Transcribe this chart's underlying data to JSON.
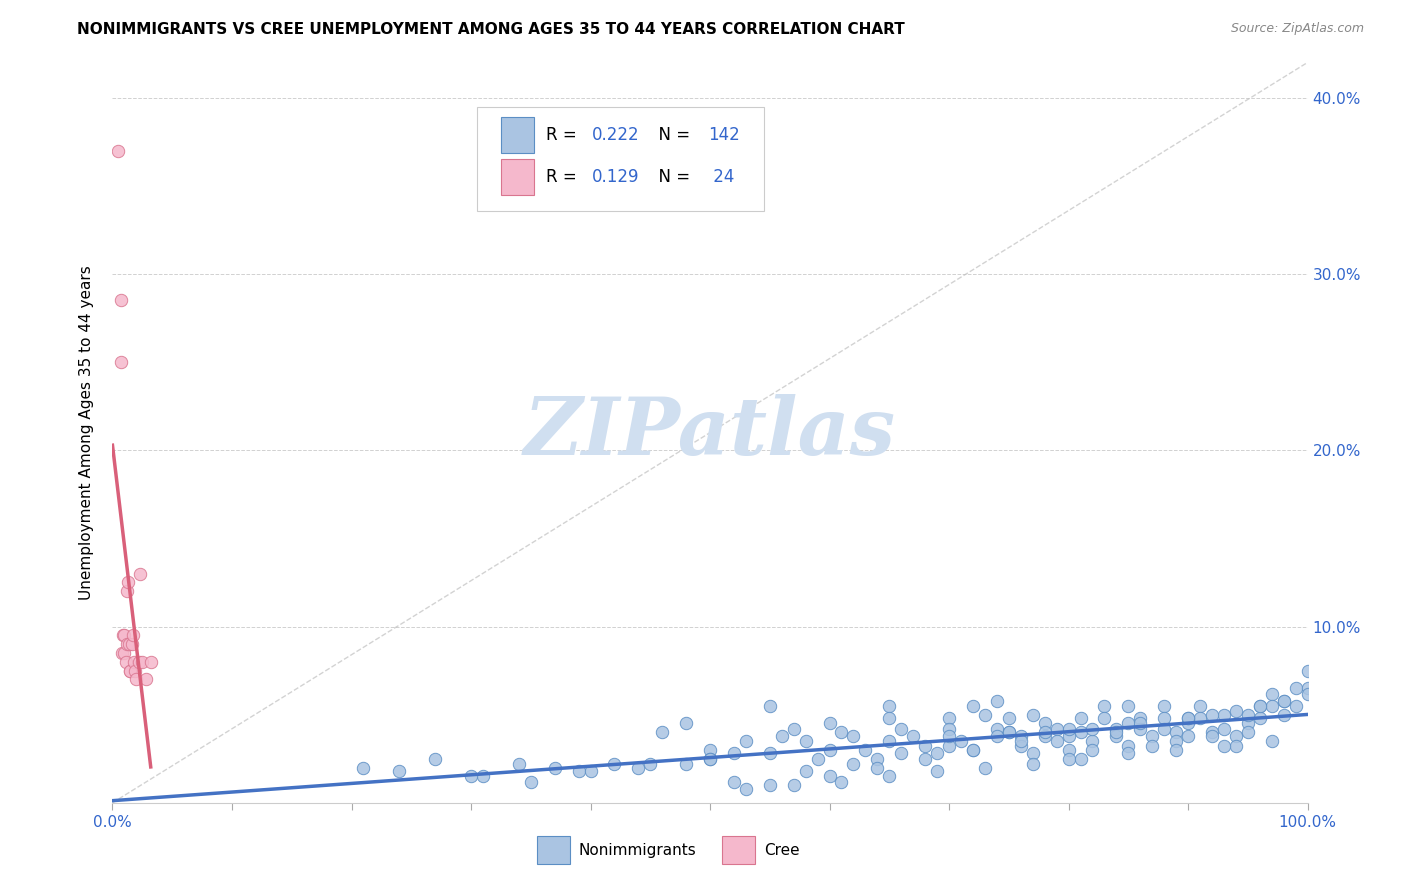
{
  "title": "NONIMMIGRANTS VS CREE UNEMPLOYMENT AMONG AGES 35 TO 44 YEARS CORRELATION CHART",
  "source": "Source: ZipAtlas.com",
  "ylabel": "Unemployment Among Ages 35 to 44 years",
  "xlim": [
    0,
    1.0
  ],
  "ylim": [
    0,
    0.42
  ],
  "xticks": [
    0.0,
    0.1,
    0.2,
    0.3,
    0.4,
    0.5,
    0.6,
    0.7,
    0.8,
    0.9,
    1.0
  ],
  "xticklabels": [
    "0.0%",
    "",
    "",
    "",
    "",
    "",
    "",
    "",
    "",
    "",
    "100.0%"
  ],
  "yticks": [
    0.0,
    0.1,
    0.2,
    0.3,
    0.4
  ],
  "right_yticklabels": [
    "",
    "10.0%",
    "20.0%",
    "30.0%",
    "40.0%"
  ],
  "nonimmigrants_color": "#aac4e2",
  "nonimmigrants_edge": "#5b8ec4",
  "cree_color": "#f5b8cc",
  "cree_edge": "#d9758f",
  "trend_nonimmigrants_color": "#4472c4",
  "trend_cree_color": "#d9607a",
  "diagonal_color": "#c0c0c0",
  "watermark_text": "ZIPatlas",
  "watermark_color": "#d0dff0",
  "legend_R_nonimmigrants": "0.222",
  "legend_N_nonimmigrants": "142",
  "legend_R_cree": "0.129",
  "legend_N_cree": "24",
  "legend_text_color": "#3366cc",
  "nonimmigrants_x": [
    0.21,
    0.24,
    0.27,
    0.31,
    0.34,
    0.37,
    0.39,
    0.42,
    0.44,
    0.46,
    0.48,
    0.5,
    0.52,
    0.53,
    0.55,
    0.56,
    0.57,
    0.58,
    0.59,
    0.6,
    0.61,
    0.62,
    0.63,
    0.64,
    0.65,
    0.65,
    0.66,
    0.67,
    0.68,
    0.69,
    0.7,
    0.7,
    0.71,
    0.72,
    0.72,
    0.73,
    0.74,
    0.74,
    0.75,
    0.75,
    0.76,
    0.76,
    0.77,
    0.77,
    0.78,
    0.78,
    0.79,
    0.79,
    0.8,
    0.8,
    0.81,
    0.81,
    0.82,
    0.82,
    0.83,
    0.83,
    0.84,
    0.84,
    0.85,
    0.85,
    0.86,
    0.86,
    0.87,
    0.87,
    0.88,
    0.88,
    0.89,
    0.89,
    0.9,
    0.9,
    0.91,
    0.91,
    0.92,
    0.92,
    0.93,
    0.93,
    0.94,
    0.94,
    0.95,
    0.95,
    0.96,
    0.96,
    0.97,
    0.97,
    0.98,
    0.98,
    0.99,
    0.99,
    1.0,
    1.0,
    0.48,
    0.5,
    0.52,
    0.55,
    0.58,
    0.6,
    0.62,
    0.64,
    0.66,
    0.68,
    0.7,
    0.72,
    0.74,
    0.76,
    0.78,
    0.8,
    0.82,
    0.84,
    0.86,
    0.88,
    0.9,
    0.92,
    0.94,
    0.96,
    0.98,
    1.0,
    0.53,
    0.57,
    0.61,
    0.65,
    0.69,
    0.73,
    0.77,
    0.81,
    0.85,
    0.89,
    0.93,
    0.97,
    0.3,
    0.35,
    0.4,
    0.45,
    0.5,
    0.55,
    0.6,
    0.65,
    0.7,
    0.75,
    0.8,
    0.85,
    0.9,
    0.95
  ],
  "nonimmigrants_y": [
    0.02,
    0.018,
    0.025,
    0.015,
    0.022,
    0.02,
    0.018,
    0.022,
    0.02,
    0.04,
    0.045,
    0.03,
    0.028,
    0.035,
    0.055,
    0.038,
    0.042,
    0.035,
    0.025,
    0.045,
    0.04,
    0.038,
    0.03,
    0.025,
    0.055,
    0.048,
    0.042,
    0.038,
    0.032,
    0.028,
    0.048,
    0.042,
    0.035,
    0.03,
    0.055,
    0.05,
    0.042,
    0.058,
    0.048,
    0.04,
    0.038,
    0.032,
    0.028,
    0.05,
    0.045,
    0.038,
    0.042,
    0.035,
    0.03,
    0.025,
    0.048,
    0.04,
    0.035,
    0.03,
    0.055,
    0.048,
    0.042,
    0.038,
    0.032,
    0.055,
    0.048,
    0.042,
    0.038,
    0.032,
    0.055,
    0.048,
    0.04,
    0.035,
    0.045,
    0.038,
    0.055,
    0.048,
    0.04,
    0.038,
    0.05,
    0.042,
    0.038,
    0.032,
    0.045,
    0.04,
    0.055,
    0.048,
    0.062,
    0.055,
    0.058,
    0.05,
    0.065,
    0.055,
    0.075,
    0.065,
    0.022,
    0.025,
    0.012,
    0.01,
    0.018,
    0.015,
    0.022,
    0.02,
    0.028,
    0.025,
    0.032,
    0.03,
    0.038,
    0.035,
    0.04,
    0.038,
    0.042,
    0.04,
    0.045,
    0.042,
    0.048,
    0.05,
    0.052,
    0.055,
    0.058,
    0.062,
    0.008,
    0.01,
    0.012,
    0.015,
    0.018,
    0.02,
    0.022,
    0.025,
    0.028,
    0.03,
    0.032,
    0.035,
    0.015,
    0.012,
    0.018,
    0.022,
    0.025,
    0.028,
    0.03,
    0.035,
    0.038,
    0.04,
    0.042,
    0.045,
    0.048,
    0.05
  ],
  "cree_x": [
    0.005,
    0.007,
    0.007,
    0.008,
    0.009,
    0.01,
    0.01,
    0.011,
    0.012,
    0.012,
    0.013,
    0.014,
    0.015,
    0.015,
    0.016,
    0.017,
    0.018,
    0.019,
    0.02,
    0.022,
    0.023,
    0.025,
    0.028,
    0.032
  ],
  "cree_y": [
    0.37,
    0.285,
    0.25,
    0.085,
    0.095,
    0.095,
    0.085,
    0.08,
    0.09,
    0.12,
    0.125,
    0.09,
    0.075,
    0.075,
    0.09,
    0.095,
    0.08,
    0.075,
    0.07,
    0.08,
    0.13,
    0.08,
    0.07,
    0.08
  ]
}
